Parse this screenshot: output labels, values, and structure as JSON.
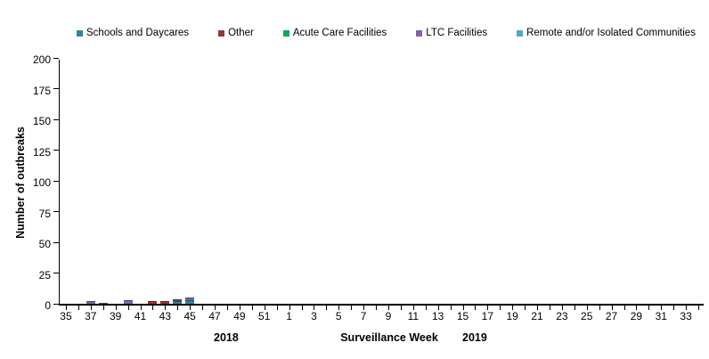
{
  "chart_data": {
    "type": "bar",
    "stacked": true,
    "title": "",
    "xlabel": "Surveillance Week",
    "ylabel": "Number of outbreaks",
    "year_left": "2018",
    "year_right": "2019",
    "ylim": [
      0,
      200
    ],
    "yticks": [
      0,
      25,
      50,
      75,
      100,
      125,
      150,
      175,
      200
    ],
    "grid": false,
    "legend_position": "top",
    "x_tick_label_step": 2,
    "categories": [
      "35",
      "36",
      "37",
      "38",
      "39",
      "40",
      "41",
      "42",
      "43",
      "44",
      "45",
      "46",
      "47",
      "48",
      "49",
      "50",
      "51",
      "52",
      "1",
      "2",
      "3",
      "4",
      "5",
      "6",
      "7",
      "8",
      "9",
      "10",
      "11",
      "12",
      "13",
      "14",
      "15",
      "16",
      "17",
      "18",
      "19",
      "20",
      "21",
      "22",
      "23",
      "24",
      "25",
      "26",
      "27",
      "28",
      "29",
      "30",
      "31",
      "32",
      "33",
      "34"
    ],
    "series": [
      {
        "name": "Schools and Daycares",
        "color": "#31859B",
        "values": {
          "44": 2,
          "45": 3
        }
      },
      {
        "name": "Other",
        "color": "#953735",
        "values": {
          "42": 2,
          "43": 2,
          "44": 2
        }
      },
      {
        "name": "Acute Care Facilities",
        "color": "#00B050",
        "values": {}
      },
      {
        "name": "LTC Facilities",
        "color": "#8064A2",
        "values": {
          "37": 2,
          "38": 1,
          "40": 3,
          "45": 2
        }
      },
      {
        "name": "Remote and/or Isolated Communities",
        "color": "#4BACC6",
        "values": {}
      }
    ]
  }
}
